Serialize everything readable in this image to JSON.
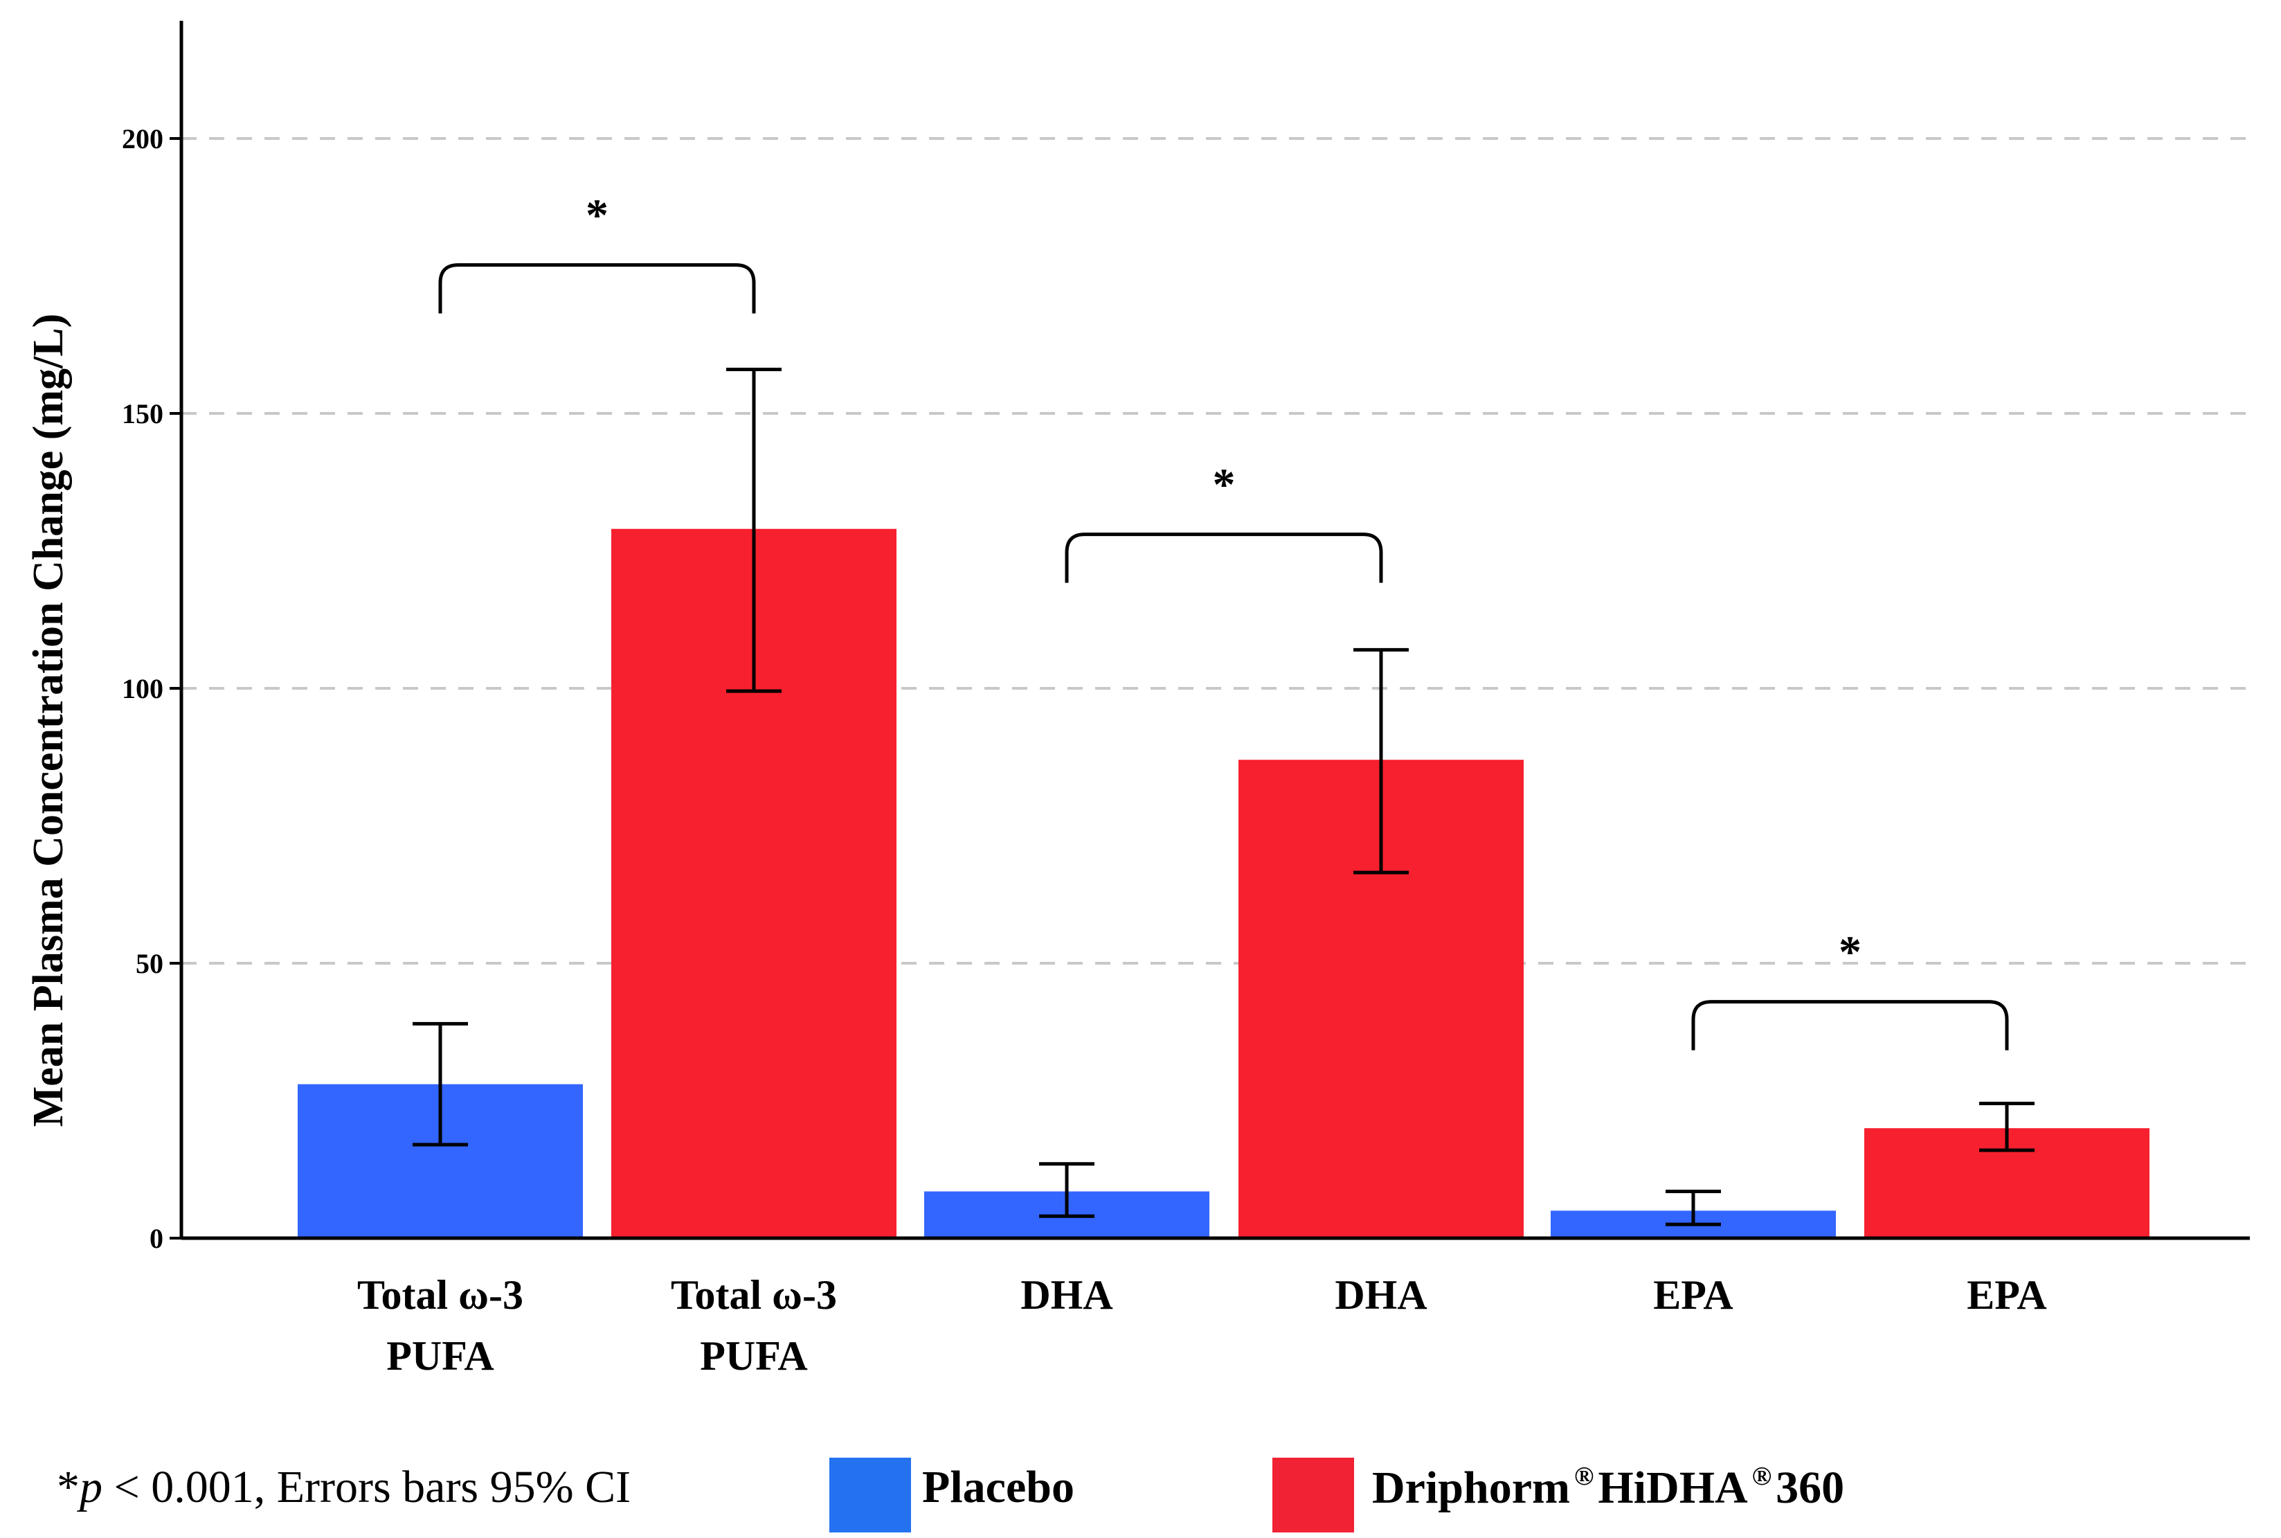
{
  "chart_data": {
    "type": "bar",
    "ylabel": "Mean Plasma Concentration Change (mg/L)",
    "xlabel": "",
    "ylim": [
      0,
      220
    ],
    "yticks": [
      0,
      50,
      100,
      150,
      200
    ],
    "grid": "horizontal dashed",
    "bars": [
      {
        "label": "Total ω-3 PUFA",
        "series": "Placebo",
        "value": 28,
        "ci_low": 17,
        "ci_high": 39
      },
      {
        "label": "Total ω-3 PUFA",
        "series": "Driphorm HiDHA 360",
        "value": 129,
        "ci_low": 99.5,
        "ci_high": 158
      },
      {
        "label": "DHA",
        "series": "Placebo",
        "value": 8.5,
        "ci_low": 4,
        "ci_high": 13.5
      },
      {
        "label": "DHA",
        "series": "Driphorm HiDHA 360",
        "value": 87,
        "ci_low": 66.5,
        "ci_high": 107
      },
      {
        "label": "EPA",
        "series": "Placebo",
        "value": 5,
        "ci_low": 2.5,
        "ci_high": 8.5
      },
      {
        "label": "EPA",
        "series": "Driphorm HiDHA 360",
        "value": 20,
        "ci_low": 16,
        "ci_high": 24.5
      }
    ],
    "significance": [
      {
        "pair": [
          0,
          1
        ],
        "y": 177,
        "label": "*"
      },
      {
        "pair": [
          2,
          3
        ],
        "y": 128,
        "label": "*"
      },
      {
        "pair": [
          4,
          5
        ],
        "y": 43,
        "label": "*"
      }
    ],
    "series_colors": {
      "Placebo": "#3366ff",
      "Driphorm HiDHA 360": "#f7202e"
    }
  },
  "legend": {
    "note_star": "*",
    "note_p": "p",
    "note_rest": " < 0.001, Errors bars 95% CI",
    "placebo_label": "Placebo",
    "active_label_1": "Driphorm",
    "active_reg_1": "®",
    "active_label_2": "HiDHA",
    "active_reg_2": "®",
    "active_label_3": "360",
    "placebo_color": "#2472f0",
    "active_color": "#f12234"
  }
}
